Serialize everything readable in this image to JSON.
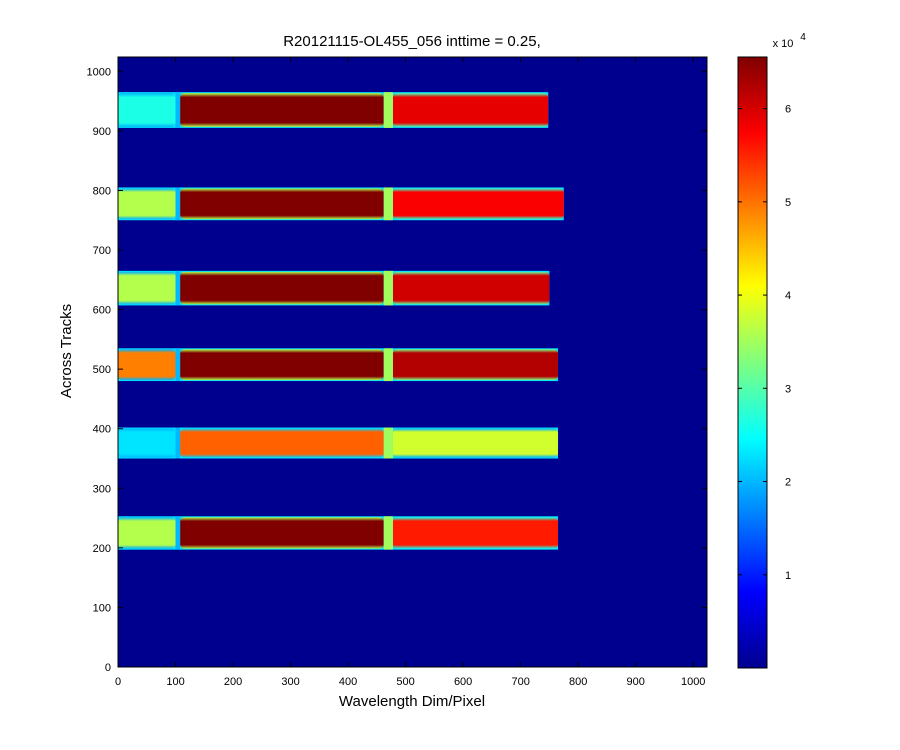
{
  "chart_data": {
    "type": "heatmap",
    "title": "R20121115-OL455_056 inttime = 0.25,",
    "xlabel": "Wavelength Dim/Pixel",
    "ylabel": "Across Tracks",
    "xlim": [
      0,
      1024
    ],
    "ylim": [
      0,
      1024
    ],
    "x_ticks": [
      0,
      100,
      200,
      300,
      400,
      500,
      600,
      700,
      800,
      900,
      1000
    ],
    "y_ticks": [
      0,
      100,
      200,
      300,
      400,
      500,
      600,
      700,
      800,
      900,
      1000
    ],
    "colormap": "jet",
    "background_color": "#00008f",
    "colorbar": {
      "range": [
        0,
        65535
      ],
      "ticks": [
        1,
        2,
        3,
        4,
        5,
        6
      ],
      "exponent_base": "x 10",
      "exponent_power": "4"
    },
    "tracks": [
      {
        "y_range": [
          197,
          253
        ],
        "x_end": 765,
        "segments": [
          {
            "x": [
              0,
              100
            ],
            "level": 0.55
          },
          {
            "x": [
              108,
              462
            ],
            "level": 1.0
          },
          {
            "x": [
              478,
              765
            ],
            "level": 0.85
          }
        ]
      },
      {
        "y_range": [
          350,
          402
        ],
        "x_end": 765,
        "segments": [
          {
            "x": [
              0,
              100
            ],
            "level": 0.35
          },
          {
            "x": [
              108,
              462
            ],
            "level": 0.78
          },
          {
            "x": [
              478,
              765
            ],
            "level": 0.58
          }
        ]
      },
      {
        "y_range": [
          480,
          535
        ],
        "x_end": 765,
        "segments": [
          {
            "x": [
              0,
              100
            ],
            "level": 0.75
          },
          {
            "x": [
              108,
              462
            ],
            "level": 1.0
          },
          {
            "x": [
              478,
              765
            ],
            "level": 0.95
          }
        ]
      },
      {
        "y_range": [
          607,
          665
        ],
        "x_end": 750,
        "segments": [
          {
            "x": [
              0,
              100
            ],
            "level": 0.55
          },
          {
            "x": [
              108,
              462
            ],
            "level": 1.0
          },
          {
            "x": [
              478,
              750
            ],
            "level": 0.92
          }
        ]
      },
      {
        "y_range": [
          750,
          805
        ],
        "x_end": 775,
        "segments": [
          {
            "x": [
              0,
              100
            ],
            "level": 0.55
          },
          {
            "x": [
              108,
              462
            ],
            "level": 1.0
          },
          {
            "x": [
              478,
              775
            ],
            "level": 0.88
          }
        ]
      },
      {
        "y_range": [
          905,
          965
        ],
        "x_end": 748,
        "segments": [
          {
            "x": [
              0,
              100
            ],
            "level": 0.4
          },
          {
            "x": [
              108,
              462
            ],
            "level": 1.0
          },
          {
            "x": [
              478,
              748
            ],
            "level": 0.9
          }
        ]
      }
    ]
  }
}
